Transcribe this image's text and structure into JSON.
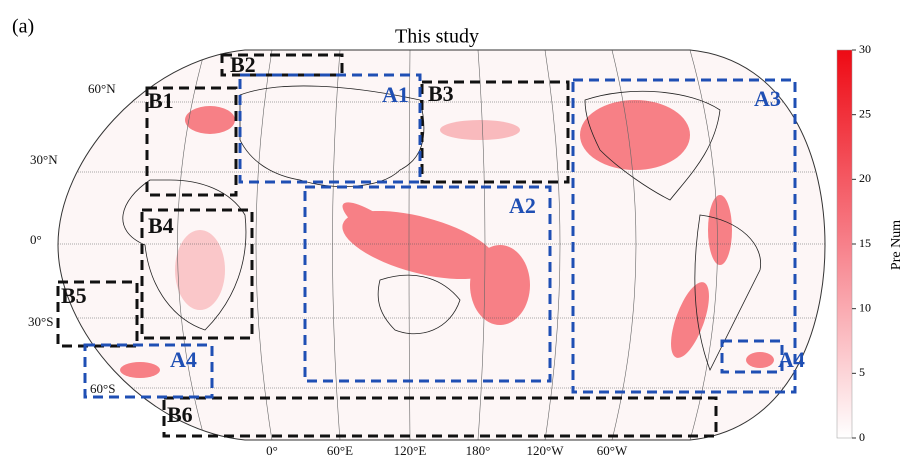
{
  "panel_label": "(a)",
  "title": "This study",
  "lat_labels": [
    "60°N",
    "30°N",
    "0°",
    "30°S",
    "60°S"
  ],
  "lon_labels": [
    "0°",
    "60°E",
    "120°E",
    "180°",
    "120°W",
    "60°W"
  ],
  "regions": [
    {
      "label": "B2",
      "color": "#111111"
    },
    {
      "label": "B1",
      "color": "#111111"
    },
    {
      "label": "B3",
      "color": "#111111"
    },
    {
      "label": "B4",
      "color": "#111111"
    },
    {
      "label": "B5",
      "color": "#111111"
    },
    {
      "label": "B6",
      "color": "#111111"
    },
    {
      "label": "A1",
      "color": "#1f4fb4"
    },
    {
      "label": "A2",
      "color": "#1f4fb4"
    },
    {
      "label": "A3",
      "color": "#1f4fb4"
    },
    {
      "label": "A4",
      "color": "#1f4fb4"
    },
    {
      "label": "A4",
      "color": "#1f4fb4"
    }
  ],
  "colorbar": {
    "label": "Pre Num",
    "lim": [
      0,
      30
    ],
    "ticks": [
      0,
      5,
      10,
      15,
      20,
      25,
      30
    ]
  }
}
